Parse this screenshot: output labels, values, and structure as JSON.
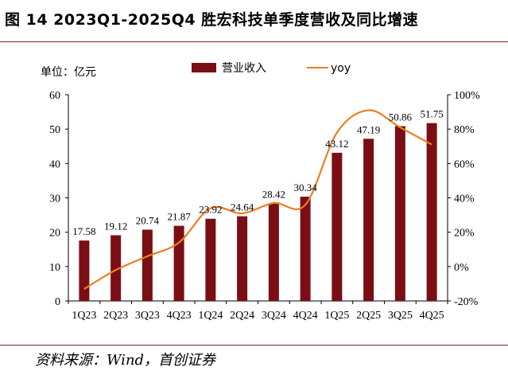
{
  "figure": {
    "title": "图 14 2023Q1-2025Q4 胜宏科技单季度营收及同比增速",
    "unit_label": "单位：亿元",
    "source": "资料来源：Wind，首创证券"
  },
  "chart_data": {
    "type": "bar",
    "categories": [
      "1Q23",
      "2Q23",
      "3Q23",
      "4Q23",
      "1Q24",
      "2Q24",
      "3Q24",
      "4Q24",
      "1Q25",
      "2Q25",
      "3Q25",
      "4Q25"
    ],
    "series": [
      {
        "name": "营业收入",
        "type": "bar",
        "axis": "left",
        "values": [
          17.58,
          19.12,
          20.74,
          21.87,
          23.92,
          24.64,
          28.42,
          30.34,
          43.12,
          47.19,
          50.86,
          51.75
        ],
        "labels": [
          "17.58",
          "19.12",
          "20.74",
          "21.87",
          "23.92",
          "24.64",
          "28.42",
          "30.34",
          "43.12",
          "47.19",
          "50.86",
          "51.75"
        ]
      },
      {
        "name": "yoy",
        "type": "line",
        "axis": "right",
        "values": [
          -13,
          -2,
          6,
          14,
          34,
          31,
          37,
          36,
          78,
          91,
          81,
          71
        ]
      }
    ],
    "ylim_left": [
      0,
      60
    ],
    "yticks_left": [
      "0",
      "10",
      "20",
      "30",
      "40",
      "50",
      "60"
    ],
    "ylim_right": [
      -20,
      100
    ],
    "yticks_right": [
      "-20%",
      "0%",
      "20%",
      "40%",
      "60%",
      "80%",
      "100%"
    ],
    "legend_position": "top-center",
    "colors": {
      "bar": "#7b0e14",
      "line": "#ee7d22"
    }
  }
}
